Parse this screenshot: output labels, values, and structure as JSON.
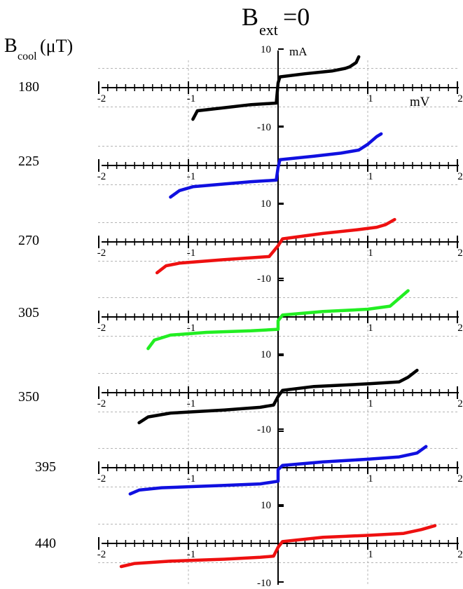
{
  "title": {
    "main": "B",
    "sub": "ext",
    "tail": "=0"
  },
  "row_header": {
    "main": "B",
    "sub": "cool",
    "tail": "(μT)"
  },
  "units": {
    "x": "mV",
    "y": "mA"
  },
  "colors": {
    "black": "#000000",
    "blue": "#1010e0",
    "red": "#ee1010",
    "green": "#22ee22",
    "grid": "#b4b4b4"
  },
  "chart_data": {
    "type": "line",
    "title": "Bext=0",
    "xlabel": "mV",
    "ylabel": "mA",
    "xlim": [
      -2,
      2
    ],
    "ylim": [
      -10,
      10
    ],
    "x_ticks": [
      "-2",
      "-1",
      "1",
      "2"
    ],
    "y_ticks": [
      "10",
      "-10"
    ],
    "grid": true,
    "legend_heading": "Bcool(μT)",
    "panels": [
      {
        "name": "180",
        "color": "black",
        "points": [
          [
            -0.95,
            -8.2
          ],
          [
            -0.9,
            -6.0
          ],
          [
            -0.6,
            -5.2
          ],
          [
            -0.3,
            -4.4
          ],
          [
            -0.02,
            -4.0
          ],
          [
            0,
            1.2
          ],
          [
            0.02,
            2.8
          ],
          [
            0.3,
            3.6
          ],
          [
            0.6,
            4.3
          ],
          [
            0.75,
            5.0
          ],
          [
            0.8,
            5.4
          ],
          [
            0.87,
            6.5
          ],
          [
            0.9,
            8.0
          ]
        ]
      },
      {
        "name": "225",
        "color": "blue",
        "points": [
          [
            -1.2,
            -8.2
          ],
          [
            -1.1,
            -6.5
          ],
          [
            -0.95,
            -5.5
          ],
          [
            -0.6,
            -4.8
          ],
          [
            -0.3,
            -4.2
          ],
          [
            -0.02,
            -3.8
          ],
          [
            0,
            -0.5
          ],
          [
            0.02,
            1.5
          ],
          [
            0.4,
            2.4
          ],
          [
            0.7,
            3.2
          ],
          [
            0.9,
            4.0
          ],
          [
            1.0,
            5.5
          ],
          [
            1.1,
            7.5
          ],
          [
            1.15,
            8.2
          ]
        ]
      },
      {
        "name": "270",
        "color": "red",
        "points": [
          [
            -1.35,
            -8.0
          ],
          [
            -1.25,
            -6.2
          ],
          [
            -1.1,
            -5.5
          ],
          [
            -0.6,
            -4.6
          ],
          [
            -0.1,
            -3.8
          ],
          [
            0,
            -1.0
          ],
          [
            0.05,
            0.8
          ],
          [
            0.5,
            2.2
          ],
          [
            0.9,
            3.2
          ],
          [
            1.1,
            3.8
          ],
          [
            1.2,
            4.5
          ],
          [
            1.3,
            5.8
          ]
        ]
      },
      {
        "name": "305",
        "color": "green",
        "points": [
          [
            -1.45,
            -8.2
          ],
          [
            -1.38,
            -6.0
          ],
          [
            -1.2,
            -4.7
          ],
          [
            -0.8,
            -4.0
          ],
          [
            -0.3,
            -3.6
          ],
          [
            0,
            -3.2
          ],
          [
            0,
            -1.0
          ],
          [
            0.05,
            0.5
          ],
          [
            0.5,
            1.4
          ],
          [
            1.0,
            2.0
          ],
          [
            1.25,
            2.8
          ],
          [
            1.35,
            4.8
          ],
          [
            1.45,
            6.8
          ]
        ]
      },
      {
        "name": "350",
        "color": "black",
        "points": [
          [
            -1.55,
            -7.8
          ],
          [
            -1.45,
            -6.3
          ],
          [
            -1.2,
            -5.3
          ],
          [
            -0.6,
            -4.5
          ],
          [
            -0.2,
            -3.8
          ],
          [
            -0.05,
            -3.2
          ],
          [
            0,
            -1.0
          ],
          [
            0.05,
            0.6
          ],
          [
            0.4,
            1.6
          ],
          [
            1.0,
            2.3
          ],
          [
            1.35,
            2.8
          ],
          [
            1.45,
            4.0
          ],
          [
            1.55,
            5.8
          ]
        ]
      },
      {
        "name": "395",
        "color": "blue",
        "points": [
          [
            -1.65,
            -6.8
          ],
          [
            -1.55,
            -5.8
          ],
          [
            -1.3,
            -5.2
          ],
          [
            -0.6,
            -4.6
          ],
          [
            -0.2,
            -4.2
          ],
          [
            0,
            -3.5
          ],
          [
            0,
            -0.5
          ],
          [
            0.05,
            0.6
          ],
          [
            0.5,
            1.5
          ],
          [
            1.0,
            2.2
          ],
          [
            1.35,
            2.8
          ],
          [
            1.55,
            3.8
          ],
          [
            1.65,
            5.5
          ]
        ]
      },
      {
        "name": "440",
        "color": "red",
        "points": [
          [
            -1.75,
            -6.0
          ],
          [
            -1.6,
            -5.2
          ],
          [
            -1.2,
            -4.6
          ],
          [
            -0.6,
            -4.1
          ],
          [
            -0.2,
            -3.6
          ],
          [
            -0.05,
            -3.3
          ],
          [
            0,
            -1.0
          ],
          [
            0.05,
            0.5
          ],
          [
            0.5,
            1.6
          ],
          [
            1.0,
            2.1
          ],
          [
            1.4,
            2.6
          ],
          [
            1.6,
            3.6
          ],
          [
            1.75,
            4.6
          ]
        ]
      }
    ]
  }
}
